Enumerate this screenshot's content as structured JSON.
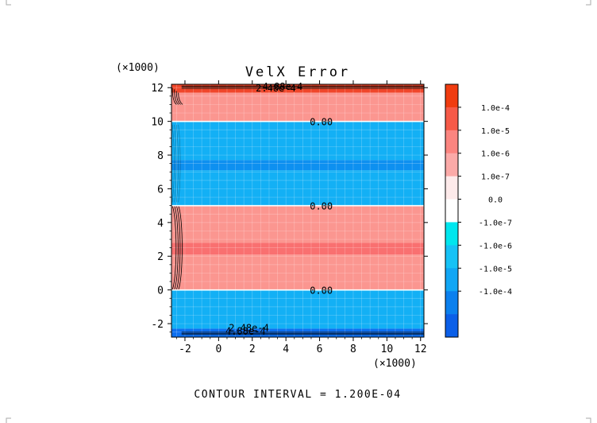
{
  "chart_data": {
    "type": "heatmap",
    "title": "VelX Error",
    "x_multiplier": "(×1000)",
    "y_multiplier": "(×1000)",
    "xlim": [
      -2.8,
      12.2
    ],
    "ylim": [
      -2.8,
      12.2
    ],
    "x_ticks": [
      "-2",
      "0",
      "2",
      "4",
      "6",
      "8",
      "10",
      "12"
    ],
    "x_tick_values": [
      -2,
      0,
      2,
      4,
      6,
      8,
      10,
      12
    ],
    "y_ticks": [
      "-2",
      "0",
      "2",
      "4",
      "6",
      "8",
      "10",
      "12"
    ],
    "y_tick_values": [
      -2,
      0,
      2,
      4,
      6,
      8,
      10,
      12
    ],
    "footer": "CONTOUR INTERVAL = 1.200E-04",
    "grid": true,
    "bands": [
      {
        "y0": 11.7,
        "y1": 12.2,
        "color": "#f0462a"
      },
      {
        "y0": 10.0,
        "y1": 11.7,
        "color": "#fb9690"
      },
      {
        "y0": 7.7,
        "y1": 10.0,
        "color": "#13b0f5"
      },
      {
        "y0": 7.1,
        "y1": 7.7,
        "color": "#0d90f0"
      },
      {
        "y0": 5.0,
        "y1": 7.1,
        "color": "#13b0f5"
      },
      {
        "y0": 2.8,
        "y1": 5.0,
        "color": "#fb9690"
      },
      {
        "y0": 2.1,
        "y1": 2.8,
        "color": "#f97070"
      },
      {
        "y0": 0.0,
        "y1": 2.1,
        "color": "#fb9690"
      },
      {
        "y0": -2.3,
        "y1": 0.0,
        "color": "#13b0f5"
      },
      {
        "y0": -2.8,
        "y1": -2.3,
        "color": "#0d6ff0"
      }
    ],
    "contour_labels": [
      {
        "text": "0.00",
        "x": 6.1,
        "y": 10.0
      },
      {
        "text": "0.00",
        "x": 6.1,
        "y": 5.0
      },
      {
        "text": "0.00",
        "x": 6.1,
        "y": 0.0
      },
      {
        "text": "2.48e-4",
        "x": 3.4,
        "y": 12.0
      },
      {
        "text": "4.88e-4",
        "x": 3.8,
        "y": 12.1
      },
      {
        "text": "2.48e-4",
        "x": 1.8,
        "y": -2.2
      },
      {
        "text": "4.88e-4",
        "x": 1.6,
        "y": -2.4
      }
    ],
    "colorbar": {
      "labels": [
        "1.0e-4",
        "1.0e-5",
        "1.0e-6",
        "1.0e-7",
        "0.0",
        "-1.0e-7",
        "-1.0e-6",
        "-1.0e-5",
        "-1.0e-4"
      ],
      "colors": [
        "#f03c10",
        "#f65a48",
        "#fb8580",
        "#fbaaa8",
        "#fdeaea",
        "#ffffff",
        "#00e6ee",
        "#16c2f6",
        "#11a6f4",
        "#0b80ee",
        "#0b5fe8"
      ]
    }
  }
}
